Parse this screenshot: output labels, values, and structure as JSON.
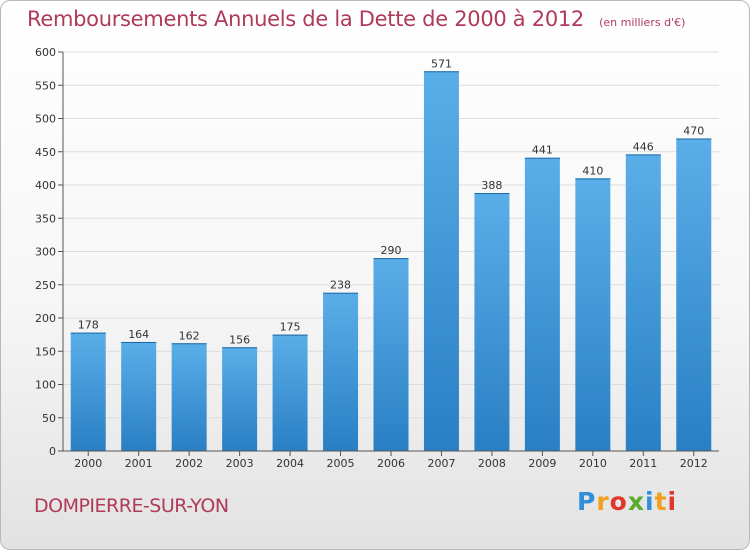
{
  "header": {
    "title": "Remboursements Annuels de la Dette de 2000 à 2012",
    "subtitle": "(en milliers d'€)"
  },
  "footer": {
    "commune": "DOMPIERRE-SUR-YON",
    "logo": [
      "P",
      "r",
      "o",
      "x",
      "i",
      "t",
      "i"
    ]
  },
  "colors": {
    "bar_top": "#5aaee8",
    "bar_bottom": "#2a7fc4",
    "title": "#b03a5a",
    "grid": "#dddddd"
  },
  "chart_data": {
    "type": "bar",
    "title": "Remboursements Annuels de la Dette de 2000 à 2012",
    "subtitle": "(en milliers d'€)",
    "xlabel": "",
    "ylabel": "",
    "categories": [
      "2000",
      "2001",
      "2002",
      "2003",
      "2004",
      "2005",
      "2006",
      "2007",
      "2008",
      "2009",
      "2010",
      "2011",
      "2012"
    ],
    "values": [
      178,
      164,
      162,
      156,
      175,
      238,
      290,
      571,
      388,
      441,
      410,
      446,
      470
    ],
    "ylim": [
      0,
      600
    ],
    "yticks": [
      0,
      50,
      100,
      150,
      200,
      250,
      300,
      350,
      400,
      450,
      500,
      550,
      600
    ],
    "grid": true,
    "legend": "none"
  }
}
